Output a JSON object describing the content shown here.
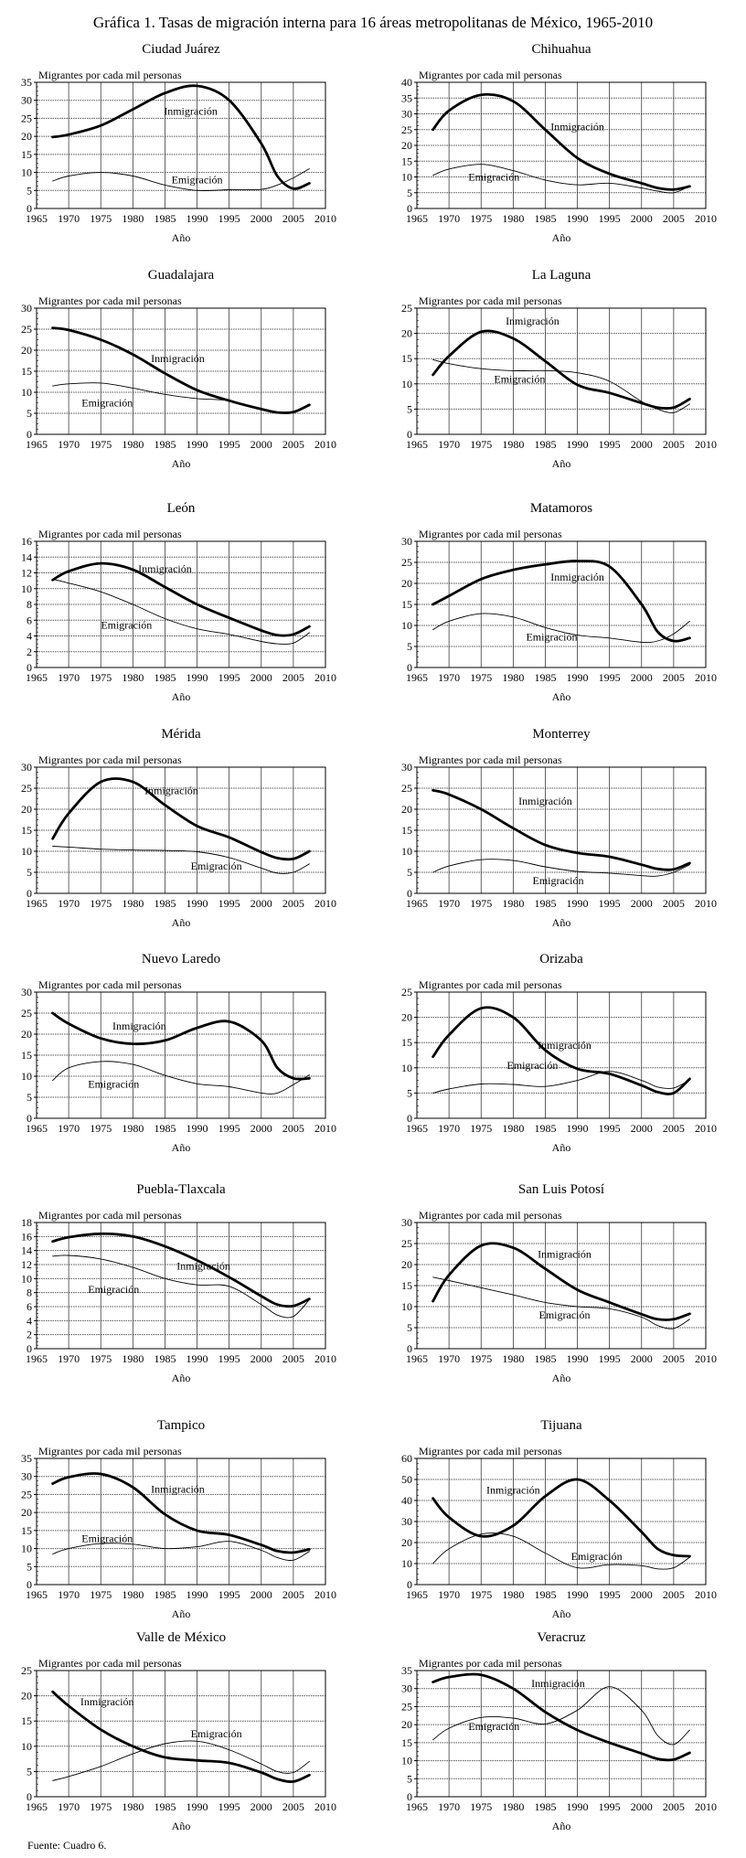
{
  "title": "Gráfica 1. Tasas de migración interna para 16 áreas metropolitanas de México, 1965-2010",
  "footer": "Fuente: Cuadro 6.",
  "chart_data": [
    {
      "type": "line",
      "title": "Ciudad Juárez",
      "ylabel": "Migrantes por cada mil personas",
      "xlabel": "Año",
      "xlim": [
        1965,
        2010
      ],
      "ylim": [
        0,
        35
      ],
      "ystep": 5,
      "x": [
        1967.5,
        1970,
        1975,
        1980,
        1985,
        1990,
        1995,
        2000,
        2002.5,
        2005,
        2007.5
      ],
      "series": [
        {
          "name": "Inmigración",
          "values": [
            19.8,
            20.5,
            23,
            27.5,
            32,
            34,
            30,
            18,
            9,
            5.5,
            7
          ]
        },
        {
          "name": "Emigración",
          "values": [
            7.6,
            9,
            10,
            9,
            6.5,
            5,
            5.2,
            5.3,
            6.5,
            8.5,
            11
          ]
        }
      ]
    },
    {
      "type": "line",
      "title": "Chihuahua",
      "ylabel": "Migrantes por cada mil personas",
      "xlabel": "Año",
      "xlim": [
        1965,
        2010
      ],
      "ylim": [
        0,
        40
      ],
      "ystep": 5,
      "x": [
        1967.5,
        1970,
        1975,
        1980,
        1985,
        1990,
        1995,
        2000,
        2002.5,
        2005,
        2007.5
      ],
      "series": [
        {
          "name": "Inmigración",
          "values": [
            25,
            31,
            36,
            34,
            25,
            16,
            11,
            8,
            6.5,
            6,
            7
          ]
        },
        {
          "name": "Emigración",
          "values": [
            10.5,
            12.5,
            14,
            12,
            9,
            7.5,
            8,
            6.5,
            5.5,
            5,
            7
          ]
        }
      ]
    },
    {
      "type": "line",
      "title": "Guadalajara",
      "ylabel": "Migrantes por cada mil personas",
      "xlabel": "Año",
      "xlim": [
        1965,
        2010
      ],
      "ylim": [
        0,
        30
      ],
      "ystep": 5,
      "x": [
        1967.5,
        1970,
        1975,
        1980,
        1985,
        1990,
        1995,
        2000,
        2002.5,
        2005,
        2007.5
      ],
      "series": [
        {
          "name": "Inmigración",
          "values": [
            25.3,
            24.8,
            22.5,
            19,
            14.5,
            10.5,
            8,
            6,
            5.2,
            5.3,
            7
          ]
        },
        {
          "name": "Emigración",
          "values": [
            11.5,
            12,
            12.2,
            11,
            9.5,
            8.5,
            8,
            6,
            5.2,
            5.3,
            7
          ]
        }
      ]
    },
    {
      "type": "line",
      "title": "La Laguna",
      "ylabel": "Migrantes por cada mil personas",
      "xlabel": "Año",
      "xlim": [
        1965,
        2010
      ],
      "ylim": [
        0,
        25
      ],
      "ystep": 5,
      "x": [
        1967.5,
        1970,
        1975,
        1980,
        1985,
        1990,
        1995,
        2000,
        2002.5,
        2005,
        2007.5
      ],
      "series": [
        {
          "name": "Inmigración",
          "values": [
            11.8,
            15.5,
            20.3,
            19,
            14.5,
            9.8,
            8.2,
            6.2,
            5.3,
            5.3,
            7
          ]
        },
        {
          "name": "Emigración",
          "values": [
            14.8,
            14,
            13,
            12.6,
            12.6,
            12.2,
            10.5,
            6.5,
            5,
            4.3,
            6
          ]
        }
      ]
    },
    {
      "type": "line",
      "title": "León",
      "ylabel": "Migrantes por cada mil personas",
      "xlabel": "Año",
      "xlim": [
        1965,
        2010
      ],
      "ylim": [
        0,
        16
      ],
      "ystep": 2,
      "x": [
        1967.5,
        1970,
        1975,
        1980,
        1985,
        1990,
        1995,
        2000,
        2002.5,
        2005,
        2007.5
      ],
      "series": [
        {
          "name": "Inmigración",
          "values": [
            11.1,
            12.2,
            13.2,
            12.4,
            10.2,
            8,
            6.3,
            4.7,
            4.1,
            4.2,
            5.2
          ]
        },
        {
          "name": "Emigración",
          "values": [
            11.2,
            10.7,
            9.6,
            8,
            6.2,
            4.9,
            4.2,
            3.3,
            3,
            3.1,
            4.4
          ]
        }
      ]
    },
    {
      "type": "line",
      "title": "Matamoros",
      "ylabel": "Migrantes por cada mil personas",
      "xlabel": "Año",
      "xlim": [
        1965,
        2010
      ],
      "ylim": [
        0,
        30
      ],
      "ystep": 5,
      "x": [
        1967.5,
        1970,
        1975,
        1980,
        1985,
        1990,
        1995,
        2000,
        2002.5,
        2005,
        2007.5
      ],
      "series": [
        {
          "name": "Inmigración",
          "values": [
            15,
            17,
            21,
            23.2,
            24.5,
            25.3,
            24,
            15,
            8.5,
            6.3,
            7
          ]
        },
        {
          "name": "Emigración",
          "values": [
            9,
            11,
            12.8,
            12,
            9.5,
            7.7,
            7,
            6,
            6.3,
            8,
            11
          ]
        }
      ]
    },
    {
      "type": "line",
      "title": "Mérida",
      "ylabel": "Migrantes por cada mil personas",
      "xlabel": "Año",
      "xlim": [
        1965,
        2010
      ],
      "ylim": [
        0,
        30
      ],
      "ystep": 5,
      "x": [
        1967.5,
        1970,
        1975,
        1980,
        1985,
        1990,
        1995,
        2000,
        2002.5,
        2005,
        2007.5
      ],
      "series": [
        {
          "name": "Inmigración",
          "values": [
            13,
            19,
            26.5,
            26.5,
            21,
            16,
            13.3,
            9.8,
            8.4,
            8.2,
            10
          ]
        },
        {
          "name": "Emigración",
          "values": [
            11.2,
            11,
            10.5,
            10.3,
            10.2,
            9.9,
            8.5,
            6,
            4.8,
            5,
            7
          ]
        }
      ]
    },
    {
      "type": "line",
      "title": "Monterrey",
      "ylabel": "Migrantes por cada mil personas",
      "xlabel": "Año",
      "xlim": [
        1965,
        2010
      ],
      "ylim": [
        0,
        30
      ],
      "ystep": 5,
      "x": [
        1967.5,
        1970,
        1975,
        1980,
        1985,
        1990,
        1995,
        2000,
        2002.5,
        2005,
        2007.5
      ],
      "series": [
        {
          "name": "Inmigración",
          "values": [
            24.5,
            23.5,
            20,
            15.5,
            11.5,
            9.6,
            8.7,
            6.8,
            5.8,
            5.7,
            7.2
          ]
        },
        {
          "name": "Emigración",
          "values": [
            5,
            6.5,
            8,
            7.8,
            6.3,
            5.2,
            4.8,
            4.2,
            4.1,
            5,
            6.8
          ]
        }
      ]
    },
    {
      "type": "line",
      "title": "Nuevo Laredo",
      "ylabel": "Migrantes por cada mil personas",
      "xlabel": "Año",
      "xlim": [
        1965,
        2010
      ],
      "ylim": [
        0,
        30
      ],
      "ystep": 5,
      "x": [
        1967.5,
        1970,
        1975,
        1980,
        1985,
        1990,
        1995,
        2000,
        2002.5,
        2005,
        2007.5
      ],
      "series": [
        {
          "name": "Inmigración",
          "values": [
            25,
            22.5,
            19,
            17.7,
            18.5,
            21.5,
            23,
            18.5,
            12,
            9.5,
            9.5
          ]
        },
        {
          "name": "Emigración",
          "values": [
            9,
            12,
            13.5,
            12.8,
            10.2,
            8.2,
            7.5,
            6,
            6,
            8,
            10.3
          ]
        }
      ]
    },
    {
      "type": "line",
      "title": "Orizaba",
      "ylabel": "Migrantes por cada mil personas",
      "xlabel": "Año",
      "xlim": [
        1965,
        2010
      ],
      "ylim": [
        0,
        25
      ],
      "ystep": 5,
      "x": [
        1967.5,
        1970,
        1975,
        1980,
        1985,
        1990,
        1995,
        2000,
        2002.5,
        2005,
        2007.5
      ],
      "series": [
        {
          "name": "Inmigración",
          "values": [
            12.2,
            16.5,
            21.8,
            20,
            13.5,
            9.8,
            8.8,
            6.5,
            5.2,
            5,
            7.8
          ]
        },
        {
          "name": "Emigración",
          "values": [
            5,
            5.8,
            6.8,
            6.7,
            6.3,
            7.5,
            9.3,
            7.5,
            6.2,
            6,
            7.6
          ]
        }
      ]
    },
    {
      "type": "line",
      "title": "Puebla-Tlaxcala",
      "ylabel": "Migrantes por cada mil personas",
      "xlabel": "Año",
      "xlim": [
        1965,
        2010
      ],
      "ylim": [
        0,
        18
      ],
      "ystep": 2,
      "x": [
        1967.5,
        1970,
        1975,
        1980,
        1985,
        1990,
        1995,
        2000,
        2002.5,
        2005,
        2007.5
      ],
      "series": [
        {
          "name": "Inmigración",
          "values": [
            15.3,
            15.9,
            16.4,
            16,
            14.6,
            12.6,
            10.2,
            7.5,
            6.3,
            6.1,
            7.1
          ]
        },
        {
          "name": "Emigración",
          "values": [
            13.2,
            13.3,
            12.8,
            11.6,
            10,
            9.1,
            8.9,
            6.3,
            4.8,
            4.6,
            7
          ]
        }
      ]
    },
    {
      "type": "line",
      "title": "San Luis Potosí",
      "ylabel": "Migrantes por cada mil personas",
      "xlabel": "Año",
      "xlim": [
        1965,
        2010
      ],
      "ylim": [
        0,
        30
      ],
      "ystep": 5,
      "x": [
        1967.5,
        1970,
        1975,
        1980,
        1985,
        1990,
        1995,
        2000,
        2002.5,
        2005,
        2007.5
      ],
      "series": [
        {
          "name": "Inmigración",
          "values": [
            11.3,
            17.5,
            24.5,
            24,
            19,
            14,
            11,
            8.2,
            7,
            7,
            8.3
          ]
        },
        {
          "name": "Emigración",
          "values": [
            17,
            16.2,
            14.5,
            12.8,
            11,
            10,
            9.5,
            7.5,
            5.5,
            4.8,
            7
          ]
        }
      ]
    },
    {
      "type": "line",
      "title": "Tampico",
      "ylabel": "Migrantes por cada mil personas",
      "xlabel": "Año",
      "xlim": [
        1965,
        2010
      ],
      "ylim": [
        0,
        35
      ],
      "ystep": 5,
      "x": [
        1967.5,
        1970,
        1975,
        1980,
        1985,
        1990,
        1995,
        2000,
        2002.5,
        2005,
        2007.5
      ],
      "series": [
        {
          "name": "Inmigración",
          "values": [
            28,
            29.8,
            30.7,
            27,
            19.5,
            15,
            13.8,
            11,
            9.3,
            8.9,
            9.8
          ]
        },
        {
          "name": "Emigración",
          "values": [
            8.5,
            10,
            11.4,
            11.2,
            10,
            10.5,
            12,
            9.5,
            7.5,
            6.8,
            9.2
          ]
        }
      ]
    },
    {
      "type": "line",
      "title": "Tijuana",
      "ylabel": "Migrantes por cada mil personas",
      "xlabel": "Año",
      "xlim": [
        1965,
        2010
      ],
      "ylim": [
        0,
        60
      ],
      "ystep": 10,
      "x": [
        1967.5,
        1970,
        1975,
        1980,
        1985,
        1990,
        1995,
        2000,
        2002.5,
        2005,
        2007.5
      ],
      "series": [
        {
          "name": "Inmigración",
          "values": [
            41,
            32,
            23,
            28,
            42,
            50,
            40,
            25,
            17,
            14,
            13.5
          ]
        },
        {
          "name": "Emigración",
          "values": [
            10,
            17,
            24,
            23,
            15,
            8,
            9.5,
            9,
            7.5,
            8,
            13
          ]
        }
      ]
    },
    {
      "type": "line",
      "title": "Valle de México",
      "ylabel": "Migrantes por cada mil personas",
      "xlabel": "Año",
      "xlim": [
        1965,
        2010
      ],
      "ylim": [
        0,
        25
      ],
      "ystep": 5,
      "x": [
        1967.5,
        1970,
        1975,
        1980,
        1985,
        1990,
        1995,
        2000,
        2002.5,
        2005,
        2007.5
      ],
      "series": [
        {
          "name": "Inmigración",
          "values": [
            20.8,
            18,
            13.3,
            10,
            7.8,
            7.2,
            6.7,
            4.8,
            3.5,
            3,
            4.3
          ]
        },
        {
          "name": "Emigración",
          "values": [
            3.2,
            4,
            6,
            8.5,
            10.5,
            11,
            9.3,
            6.5,
            5,
            4.8,
            7
          ]
        }
      ]
    },
    {
      "type": "line",
      "title": "Veracruz",
      "ylabel": "Migrantes por cada mil personas",
      "xlabel": "Año",
      "xlim": [
        1965,
        2010
      ],
      "ylim": [
        0,
        35
      ],
      "ystep": 5,
      "x": [
        1967.5,
        1970,
        1975,
        1980,
        1985,
        1990,
        1995,
        2000,
        2002.5,
        2005,
        2007.5
      ],
      "series": [
        {
          "name": "Inmigración",
          "values": [
            31.8,
            33.2,
            33.8,
            30,
            23.5,
            18.5,
            15,
            12,
            10.5,
            10.3,
            12.2
          ]
        },
        {
          "name": "Emigración",
          "values": [
            15.8,
            19,
            22,
            21.8,
            20.2,
            24,
            30.5,
            24,
            17,
            14.5,
            18.5
          ]
        }
      ]
    }
  ]
}
